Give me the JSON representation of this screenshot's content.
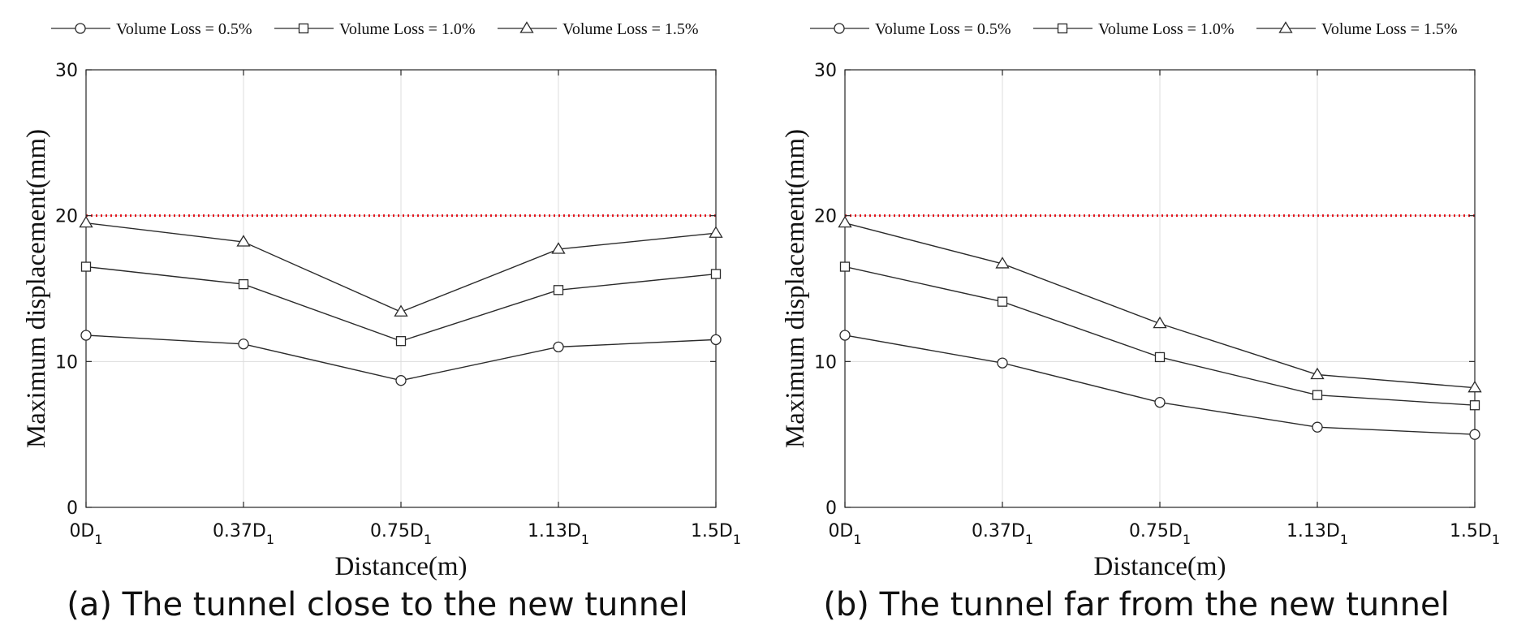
{
  "chart_data": [
    {
      "type": "line",
      "caption": "(a) The tunnel close to the new tunnel",
      "xlabel": "Distance(m)",
      "ylabel": "Maximum displacement(mm)",
      "categories": [
        {
          "base": "0D",
          "sub": "1"
        },
        {
          "base": "0.37D",
          "sub": "1"
        },
        {
          "base": "0.75D",
          "sub": "1"
        },
        {
          "base": "1.13D",
          "sub": "1"
        },
        {
          "base": "1.5D",
          "sub": "1"
        }
      ],
      "ylim": [
        0,
        30
      ],
      "yticks": [
        0,
        10,
        20,
        30
      ],
      "grid": true,
      "legend_position": "top",
      "threshold": {
        "value": 20,
        "color": "#e3131b",
        "style": "dotted"
      },
      "series": [
        {
          "name": "Volume Loss = 0.5%",
          "marker": "circle",
          "values": [
            11.8,
            11.2,
            8.7,
            11.0,
            11.5
          ]
        },
        {
          "name": "Volume Loss = 1.0%",
          "marker": "square",
          "values": [
            16.5,
            15.3,
            11.4,
            14.9,
            16.0
          ]
        },
        {
          "name": "Volume Loss = 1.5%",
          "marker": "triangle",
          "values": [
            19.5,
            18.2,
            13.4,
            17.7,
            18.8
          ]
        }
      ]
    },
    {
      "type": "line",
      "caption": "(b) The tunnel far from the new tunnel",
      "xlabel": "Distance(m)",
      "ylabel": "Maximum displacement(mm)",
      "categories": [
        {
          "base": "0D",
          "sub": "1"
        },
        {
          "base": "0.37D",
          "sub": "1"
        },
        {
          "base": "0.75D",
          "sub": "1"
        },
        {
          "base": "1.13D",
          "sub": "1"
        },
        {
          "base": "1.5D",
          "sub": "1"
        }
      ],
      "ylim": [
        0,
        30
      ],
      "yticks": [
        0,
        10,
        20,
        30
      ],
      "grid": true,
      "legend_position": "top",
      "threshold": {
        "value": 20,
        "color": "#e3131b",
        "style": "dotted"
      },
      "series": [
        {
          "name": "Volume Loss = 0.5%",
          "marker": "circle",
          "values": [
            11.8,
            9.9,
            7.2,
            5.5,
            5.0
          ]
        },
        {
          "name": "Volume Loss = 1.0%",
          "marker": "square",
          "values": [
            16.5,
            14.1,
            10.3,
            7.7,
            7.0
          ]
        },
        {
          "name": "Volume Loss = 1.5%",
          "marker": "triangle",
          "values": [
            19.5,
            16.7,
            12.6,
            9.1,
            8.2
          ]
        }
      ]
    }
  ],
  "colors": {
    "line": "#2b2b2b",
    "axis": "#262626",
    "grid": "#dcdcdc",
    "text": "#111111"
  }
}
